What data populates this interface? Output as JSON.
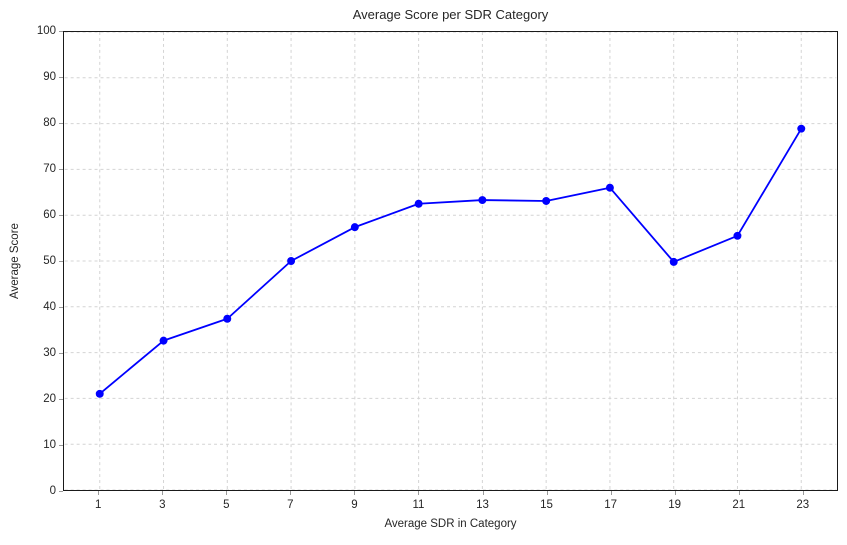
{
  "chart_data": {
    "type": "line",
    "title": "Average Score per SDR Category",
    "xlabel": "Average SDR in Category",
    "ylabel": "Average Score",
    "x": [
      1,
      3,
      5,
      7,
      9,
      11,
      13,
      15,
      17,
      19,
      21,
      23
    ],
    "values": [
      21,
      32.6,
      37.4,
      50,
      57.4,
      62.5,
      63.3,
      63.1,
      66,
      49.8,
      55.5,
      78.9
    ],
    "series_name": "Average Score",
    "xticks": [
      1,
      3,
      5,
      7,
      9,
      11,
      13,
      15,
      17,
      19,
      21,
      23
    ],
    "yticks": [
      0,
      10,
      20,
      30,
      40,
      50,
      60,
      70,
      80,
      90,
      100
    ],
    "xlim": [
      -0.1,
      24.1
    ],
    "ylim": [
      0,
      100
    ],
    "grid": "dashed",
    "legend": "none",
    "colors": {
      "line": "#0000ff",
      "marker": "#0000ff",
      "grid": "#d4d4d4",
      "spine": "#1a1a1a",
      "tick": "#9a9a9a",
      "text": "#262626",
      "background": "#ffffff"
    }
  }
}
